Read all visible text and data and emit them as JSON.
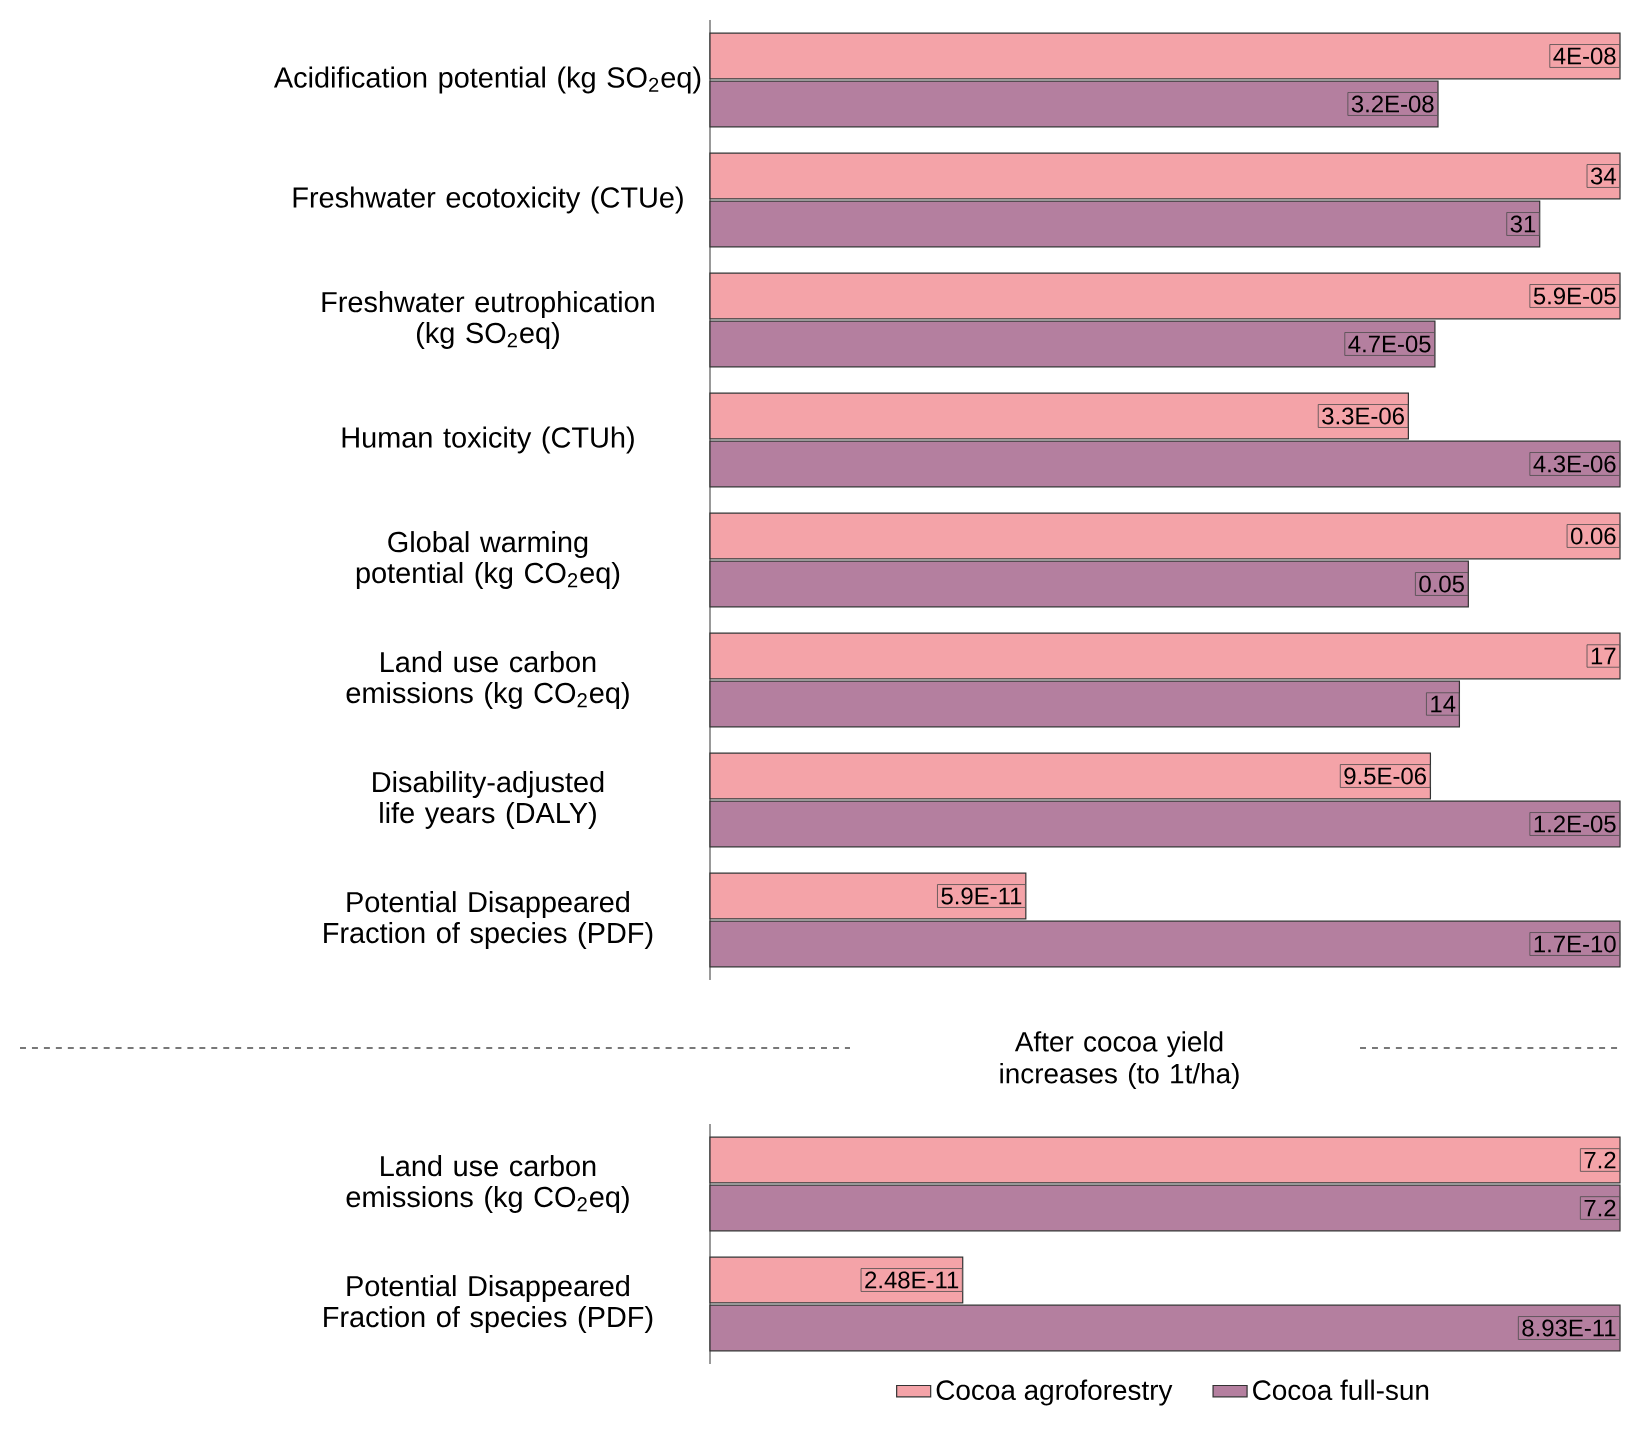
{
  "chart_data": [
    {
      "type": "bar",
      "orientation": "horizontal",
      "categories": [
        "Acidification potential (kg SO$_{2}$eq)"
      ],
      "series": [
        {
          "color": "#f4a3a8",
          "values": [
            4e-08
          ],
          "value_labels": [
            "4E-08"
          ]
        },
        {
          "color": "#b47f9f",
          "values": [
            3.2e-08
          ],
          "value_labels": [
            "3.2E-08"
          ]
        }
      ]
    },
    {
      "type": "bar",
      "orientation": "horizontal",
      "categories": [
        "Freshwater ecotoxicity (CTUe)"
      ],
      "series": [
        {
          "color": "#f4a3a8",
          "values": [
            34
          ],
          "value_labels": [
            "34"
          ]
        },
        {
          "color": "#b47f9f",
          "values": [
            31
          ],
          "value_labels": [
            "31"
          ]
        }
      ]
    },
    {
      "type": "bar",
      "orientation": "horizontal",
      "categories": [
        "Freshwater eutrophication (kg SO$_{2}$eq)"
      ],
      "series": [
        {
          "color": "#f4a3a8",
          "values": [
            5.9e-05
          ],
          "value_labels": [
            "5.9E-05"
          ]
        },
        {
          "color": "#b47f9f",
          "values": [
            4.7e-05
          ],
          "value_labels": [
            "4.7E-05"
          ]
        }
      ]
    },
    {
      "type": "bar",
      "orientation": "horizontal",
      "categories": [
        "Human toxicity (CTUh)"
      ],
      "series": [
        {
          "color": "#f4a3a8",
          "values": [
            3.3e-06
          ],
          "value_labels": [
            "3.3E-06"
          ]
        },
        {
          "color": "#b47f9f",
          "values": [
            4.3e-06
          ],
          "value_labels": [
            "4.3E-06"
          ]
        }
      ]
    },
    {
      "type": "bar",
      "orientation": "horizontal",
      "categories": [
        "Global warming potential (kg CO$_{2}$eq)"
      ],
      "series": [
        {
          "color": "#f4a3a8",
          "values": [
            0.06
          ],
          "value_labels": [
            "0.06"
          ]
        },
        {
          "color": "#b47f9f",
          "values": [
            0.05
          ],
          "value_labels": [
            "0.05"
          ]
        }
      ]
    },
    {
      "type": "bar",
      "orientation": "horizontal",
      "categories": [
        "Land use carbon emissions (kg CO$_{2}$eq)"
      ],
      "series": [
        {
          "color": "#f4a3a8",
          "values": [
            17
          ],
          "value_labels": [
            "17"
          ]
        },
        {
          "color": "#b47f9f",
          "values": [
            14
          ],
          "value_labels": [
            "14"
          ]
        }
      ]
    },
    {
      "type": "bar",
      "orientation": "horizontal",
      "categories": [
        "Disability-adjusted life years (DALY)"
      ],
      "series": [
        {
          "color": "#f4a3a8",
          "values": [
            9.5e-06
          ],
          "value_labels": [
            "9.5E-06"
          ]
        },
        {
          "color": "#b47f9f",
          "values": [
            1.2e-05
          ],
          "value_labels": [
            "1.2E-05"
          ]
        }
      ]
    },
    {
      "type": "bar",
      "orientation": "horizontal",
      "categories": [
        "Potential Disappeared Fraction of species (PDF)"
      ],
      "series": [
        {
          "color": "#f4a3a8",
          "values": [
            5.9e-11
          ],
          "value_labels": [
            "5.9E-11"
          ]
        },
        {
          "color": "#b47f9f",
          "values": [
            1.7e-10
          ],
          "value_labels": [
            "1.7E-10"
          ]
        }
      ]
    },
    {
      "type": "bar",
      "orientation": "horizontal",
      "title": "After cocoa yield increases (to 1t/ha)",
      "categories": [
        "Land use carbon emissions (kg CO$_{2}$eq)"
      ],
      "series": [
        {
          "color": "#f4a3a8",
          "values": [
            7.2
          ],
          "value_labels": [
            "7.2"
          ]
        },
        {
          "color": "#b47f9f",
          "values": [
            7.2
          ],
          "value_labels": [
            "7.2"
          ]
        }
      ]
    },
    {
      "type": "bar",
      "orientation": "horizontal",
      "legend": "bottom",
      "categories": [
        "Potential Disappeared Fraction of species (PDF)"
      ],
      "series": [
        {
          "name": "Cocoa agroforestry",
          "color": "#f4a3a8",
          "values": [
            2.48e-11
          ],
          "value_labels": [
            "2.48E-11"
          ]
        },
        {
          "name": "Cocoa full-sun",
          "color": "#b47f9f",
          "values": [
            8.93e-11
          ],
          "value_labels": [
            "8.93E-11"
          ]
        }
      ]
    }
  ]
}
